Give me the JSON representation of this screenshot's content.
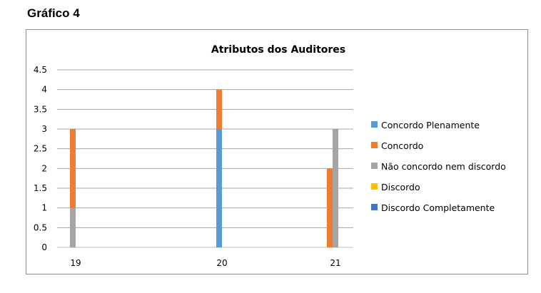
{
  "page": {
    "heading": "Gráfico 4"
  },
  "chart_data": {
    "type": "bar",
    "stacked": false,
    "title": "Atributos dos Auditores",
    "xlabel": "",
    "ylabel": "",
    "ylim": [
      0,
      4.5
    ],
    "yticks": [
      "0",
      "0.5",
      "1",
      "1.5",
      "2",
      "2.5",
      "3",
      "3.5",
      "4",
      "4.5"
    ],
    "categories": [
      "19",
      "20",
      "21"
    ],
    "grid": true,
    "legend_position": "right",
    "series": [
      {
        "name": "Concordo Plenamente",
        "color": "#5B9BD5",
        "values": [
          0,
          3,
          0
        ]
      },
      {
        "name": "Concordo",
        "color": "#ED7D31",
        "values": [
          3,
          4,
          2
        ]
      },
      {
        "name": "Não concordo nem discordo",
        "color": "#A5A5A5",
        "values": [
          1,
          0,
          3
        ]
      },
      {
        "name": "Discordo",
        "color": "#FFC000",
        "values": [
          0,
          0,
          0
        ]
      },
      {
        "name": "Discordo Completamente",
        "color": "#4472C4",
        "values": [
          0,
          0,
          0
        ]
      }
    ]
  }
}
